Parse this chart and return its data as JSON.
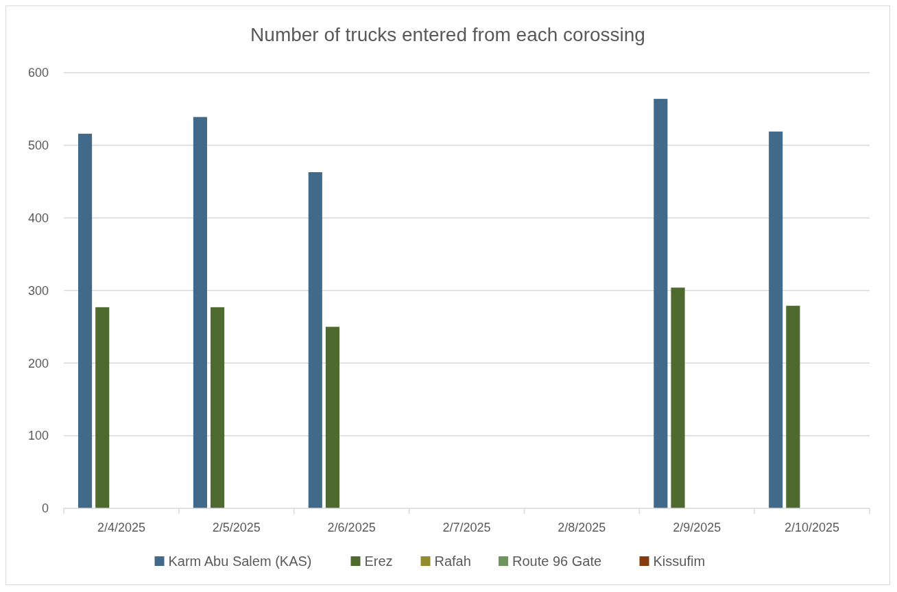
{
  "chart_data": {
    "type": "bar",
    "title": "Number of trucks entered from each corossing",
    "categories": [
      "2/4/2025",
      "2/5/2025",
      "2/6/2025",
      "2/7/2025",
      "2/8/2025",
      "2/9/2025",
      "2/10/2025"
    ],
    "series": [
      {
        "name": "Karm Abu Salem (KAS)",
        "color": "#41698a",
        "values": [
          516,
          539,
          463,
          null,
          null,
          564,
          519
        ]
      },
      {
        "name": "Erez",
        "color": "#4e6a2e",
        "values": [
          277,
          277,
          250,
          null,
          null,
          304,
          279
        ]
      },
      {
        "name": "Rafah",
        "color": "#948b2e",
        "values": [
          0,
          0,
          0,
          null,
          null,
          0,
          0
        ]
      },
      {
        "name": "Route 96 Gate",
        "color": "#6f955e",
        "values": [
          0,
          0,
          0,
          null,
          null,
          0,
          0
        ]
      },
      {
        "name": "Kissufim",
        "color": "#843c0c",
        "values": [
          0,
          0,
          0,
          null,
          null,
          0,
          0
        ]
      }
    ],
    "ylim": [
      0,
      600
    ],
    "yticks": [
      0,
      100,
      200,
      300,
      400,
      500,
      600
    ],
    "grid": "y",
    "legend": "bottom"
  }
}
